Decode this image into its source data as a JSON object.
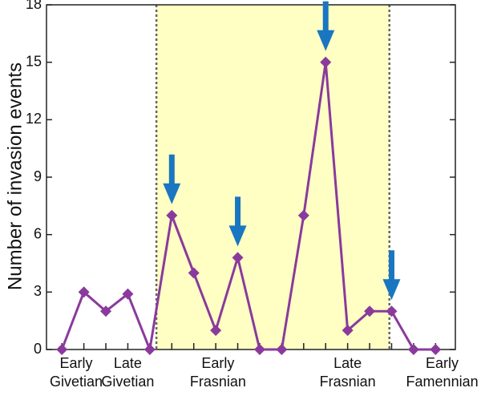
{
  "chart_data": {
    "type": "line",
    "y_label": "Number of invasion events",
    "x": [
      1,
      2,
      3,
      4,
      5,
      6,
      7,
      8,
      9,
      10,
      11,
      12,
      13,
      14,
      15,
      16,
      17,
      18
    ],
    "series": [
      {
        "color": "#8a3a9c",
        "values": [
          0,
          3,
          2,
          2.9,
          0,
          7,
          4,
          1,
          4.8,
          0,
          0,
          7,
          15,
          1,
          2,
          2,
          0,
          0
        ]
      }
    ],
    "xlim": [
      0.3,
      18.9
    ],
    "xticks": [
      {
        "value": 1.65,
        "label": "Early Givetian"
      },
      {
        "value": 4.0,
        "label": "Late Givetian"
      },
      {
        "value": 8.1,
        "label": "Early Frasnian"
      },
      {
        "value": 14.0,
        "label": "Late Frasnian"
      },
      {
        "value": 18.3,
        "label": "Early Famennian"
      }
    ],
    "ylim": [
      0,
      18
    ],
    "yticks": [
      0,
      3,
      6,
      9,
      12,
      15,
      18
    ],
    "shaded_region": [
      5.3,
      15.9
    ],
    "shade_color": "#ffffc4"
  }
}
